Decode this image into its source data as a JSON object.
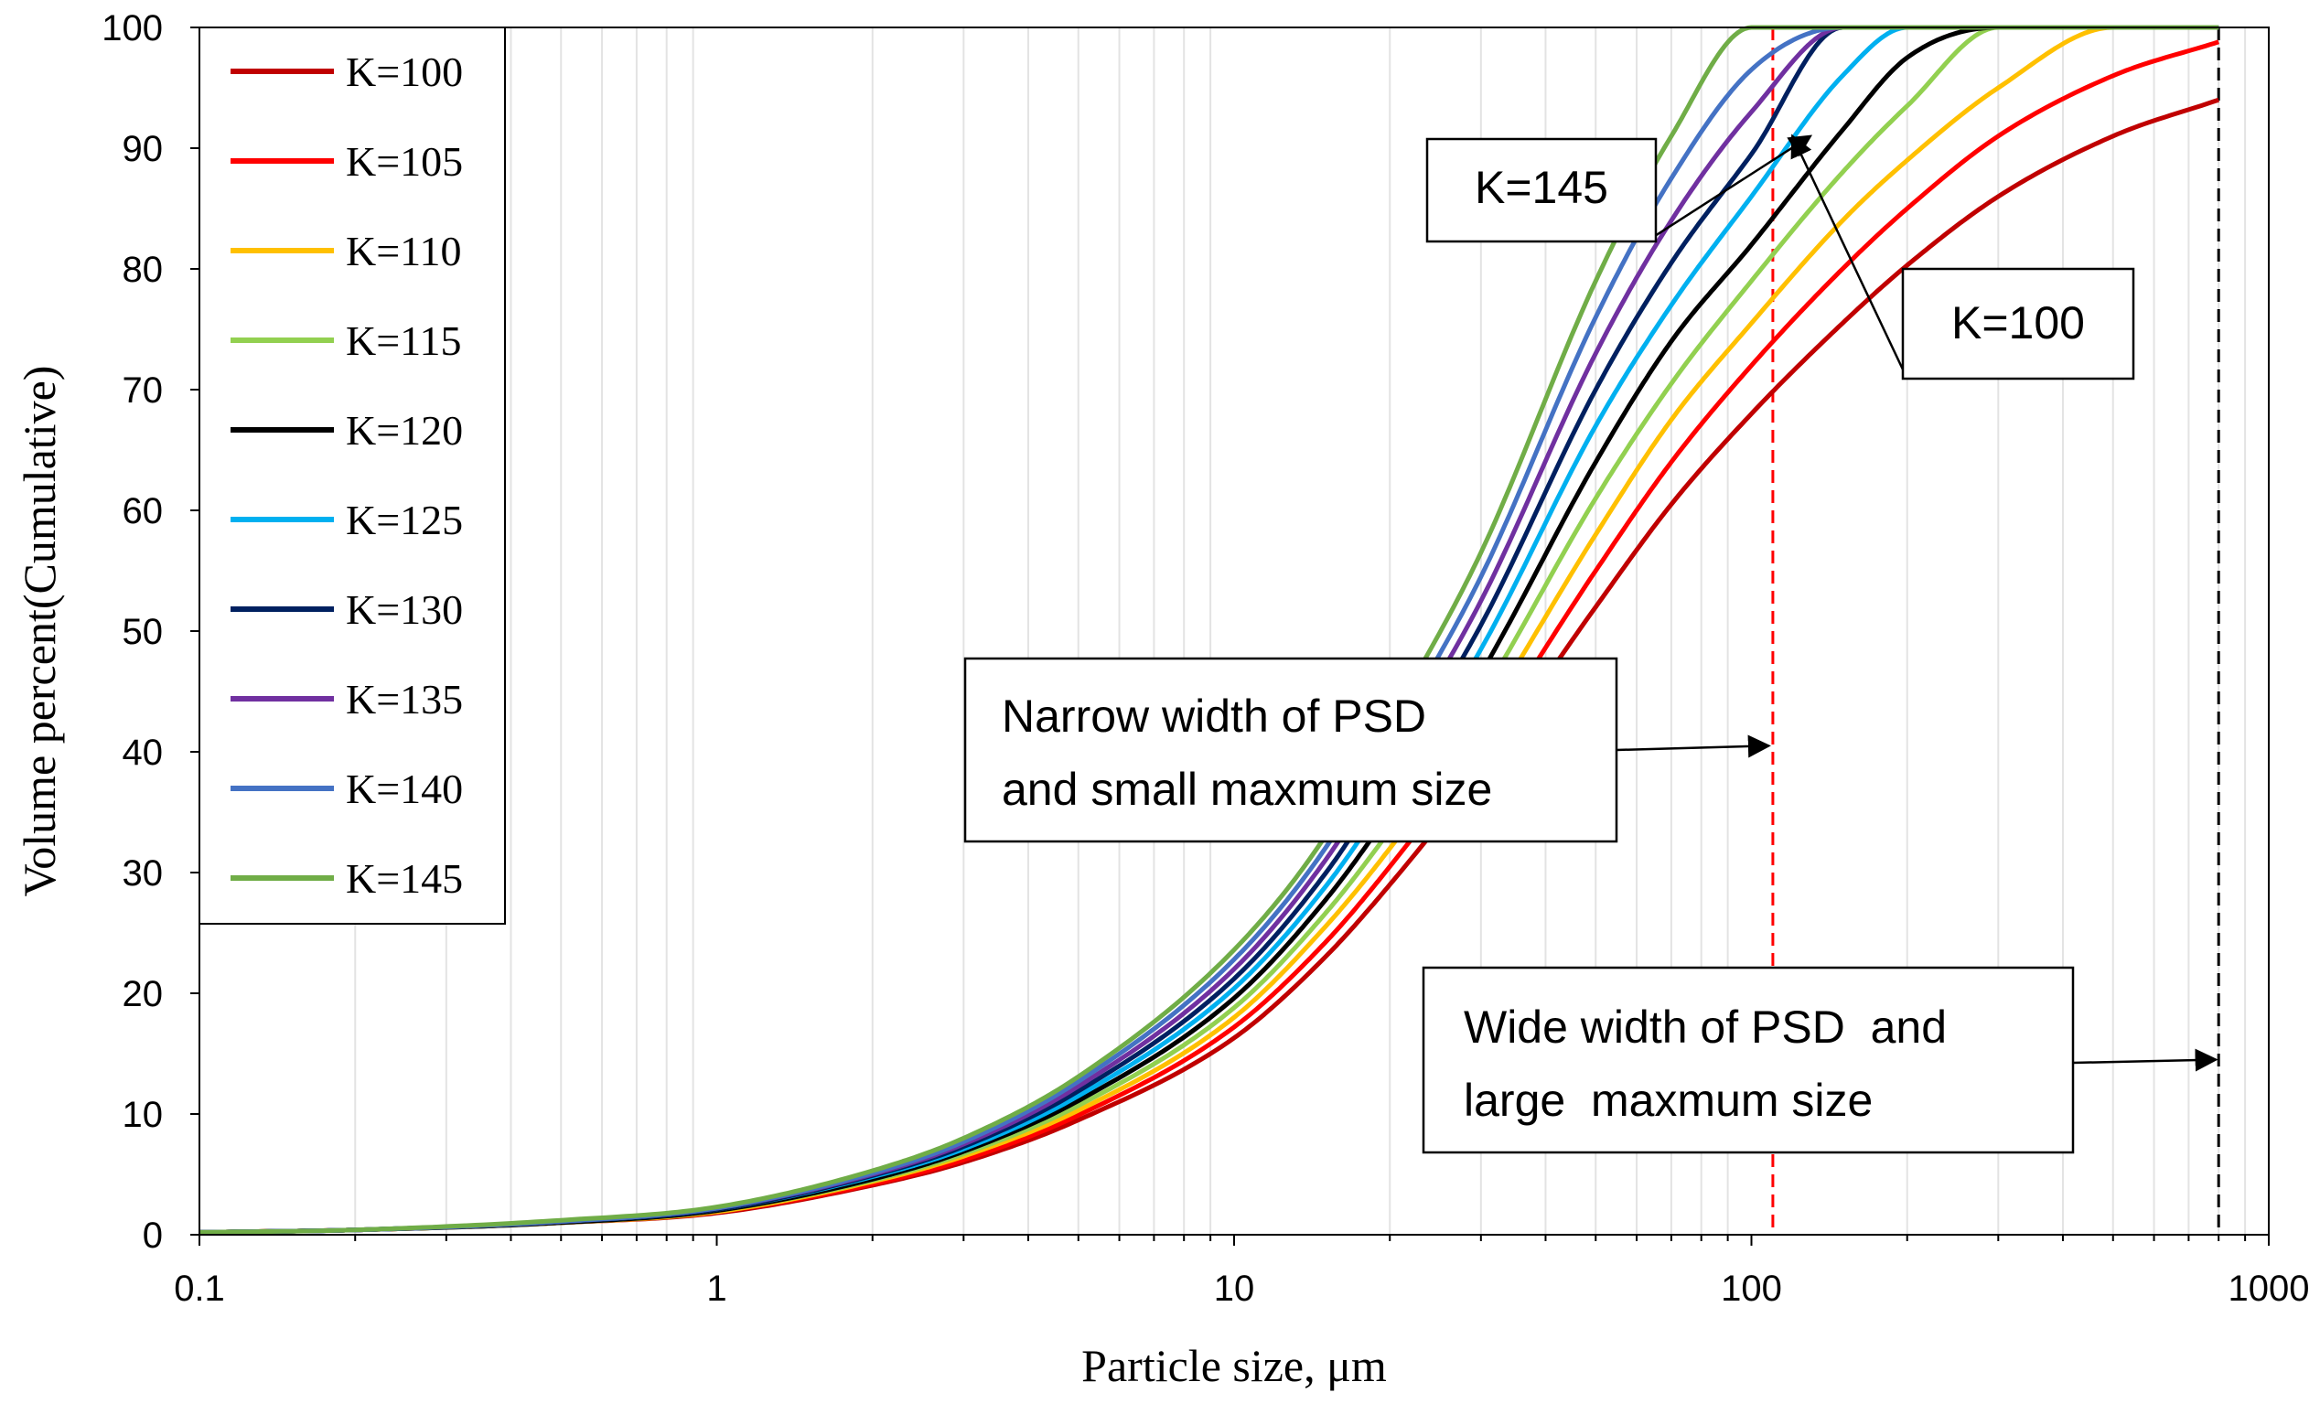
{
  "chart_data": {
    "type": "line",
    "title": "",
    "xlabel": "Particle size, μm",
    "ylabel": "Volume percent(Cumulative)",
    "xscale": "log",
    "xlim": [
      0.1,
      1000
    ],
    "ylim": [
      0,
      100
    ],
    "xticks": [
      0.1,
      1,
      10,
      100,
      1000
    ],
    "xtick_labels": [
      "0.1",
      "1",
      "10",
      "100",
      "1000"
    ],
    "yticks": [
      0,
      10,
      20,
      30,
      40,
      50,
      60,
      70,
      80,
      90,
      100
    ],
    "ytick_labels": [
      "0",
      "10",
      "20",
      "30",
      "40",
      "50",
      "60",
      "70",
      "80",
      "90",
      "100"
    ],
    "grid": "vertical minor lines",
    "legend_position": "top-left",
    "x": [
      0.1,
      0.2,
      0.5,
      1,
      2,
      3,
      5,
      10,
      15,
      20,
      30,
      50,
      70,
      100,
      150,
      200,
      300,
      500,
      800
    ],
    "series": [
      {
        "name": "K=100",
        "color": "#C00000",
        "values": [
          0.2,
          0.4,
          1.0,
          1.8,
          4.1,
          6.0,
          9.5,
          16.3,
          23.0,
          29.0,
          38.5,
          52.0,
          60.5,
          68.0,
          75.5,
          80.3,
          86.0,
          91.0,
          94.0
        ]
      },
      {
        "name": "K=105",
        "color": "#FF0000",
        "values": [
          0.2,
          0.4,
          1.0,
          1.9,
          4.2,
          6.2,
          9.9,
          17.2,
          24.2,
          30.5,
          40.5,
          55.0,
          64.0,
          72.0,
          80.0,
          85.0,
          91.0,
          96.0,
          98.8
        ]
      },
      {
        "name": "K=110",
        "color": "#FFC000",
        "values": [
          0.2,
          0.4,
          1.0,
          1.9,
          4.4,
          6.5,
          10.3,
          18.0,
          25.5,
          32.0,
          42.5,
          58.0,
          67.5,
          75.5,
          84.0,
          89.0,
          95.0,
          100.0,
          100.0
        ]
      },
      {
        "name": "K=115",
        "color": "#92D050",
        "values": [
          0.2,
          0.4,
          1.0,
          2.0,
          4.5,
          6.7,
          10.7,
          18.8,
          26.6,
          33.5,
          44.5,
          61.0,
          70.5,
          79.0,
          88.0,
          93.5,
          100.0,
          100.0,
          100.0
        ]
      },
      {
        "name": "K=120",
        "color": "#000000",
        "values": [
          0.2,
          0.4,
          1.0,
          2.0,
          4.6,
          6.9,
          11.1,
          19.6,
          27.7,
          35.0,
          46.5,
          64.0,
          74.0,
          82.0,
          91.5,
          97.5,
          100.0,
          100.0,
          100.0
        ]
      },
      {
        "name": "K=125",
        "color": "#00B0F0",
        "values": [
          0.2,
          0.4,
          1.1,
          2.1,
          4.8,
          7.1,
          11.5,
          20.4,
          28.8,
          36.5,
          48.5,
          67.0,
          77.0,
          86.0,
          96.0,
          100.0,
          100.0,
          100.0,
          100.0
        ]
      },
      {
        "name": "K=130",
        "color": "#002060",
        "values": [
          0.2,
          0.4,
          1.1,
          2.1,
          4.9,
          7.3,
          11.9,
          21.2,
          29.9,
          38.0,
          50.5,
          70.0,
          80.5,
          89.5,
          100.0,
          100.0,
          100.0,
          100.0,
          100.0
        ]
      },
      {
        "name": "K=135",
        "color": "#7030A0",
        "values": [
          0.2,
          0.4,
          1.1,
          2.2,
          5.0,
          7.5,
          12.3,
          22.0,
          31.0,
          39.5,
          52.5,
          73.0,
          84.0,
          93.0,
          100.0,
          100.0,
          100.0,
          100.0,
          100.0
        ]
      },
      {
        "name": "K=140",
        "color": "#4472C4",
        "values": [
          0.2,
          0.4,
          1.1,
          2.2,
          5.1,
          7.7,
          12.7,
          22.8,
          32.0,
          41.0,
          54.5,
          76.0,
          87.5,
          96.5,
          100.0,
          100.0,
          100.0,
          100.0,
          100.0
        ]
      },
      {
        "name": "K=145",
        "color": "#70AD47",
        "values": [
          0.2,
          0.4,
          1.2,
          2.3,
          5.3,
          8.0,
          13.1,
          23.6,
          33.0,
          42.5,
          56.5,
          79.0,
          91.0,
          100.0,
          100.0,
          100.0,
          100.0,
          100.0,
          100.0
        ]
      }
    ],
    "reference_lines": [
      {
        "x": 110,
        "color": "#FF0000",
        "style": "dashed"
      },
      {
        "x": 800,
        "color": "#000000",
        "style": "dashed"
      }
    ],
    "annotations": [
      {
        "lines": [
          "K=145"
        ],
        "arrow_to": {
          "x": 130,
          "y": 91
        }
      },
      {
        "lines": [
          "K=100"
        ],
        "arrow_to": {
          "x": 120,
          "y": 91
        }
      },
      {
        "lines": [
          "Narrow width of PSD",
          "and small maxmum size"
        ],
        "arrow_to": {
          "x": 108,
          "y": 40.5
        }
      },
      {
        "lines": [
          "Wide width of PSD  and",
          "large  maxmum size"
        ],
        "arrow_to": {
          "x": 790,
          "y": 14.5
        }
      }
    ]
  }
}
